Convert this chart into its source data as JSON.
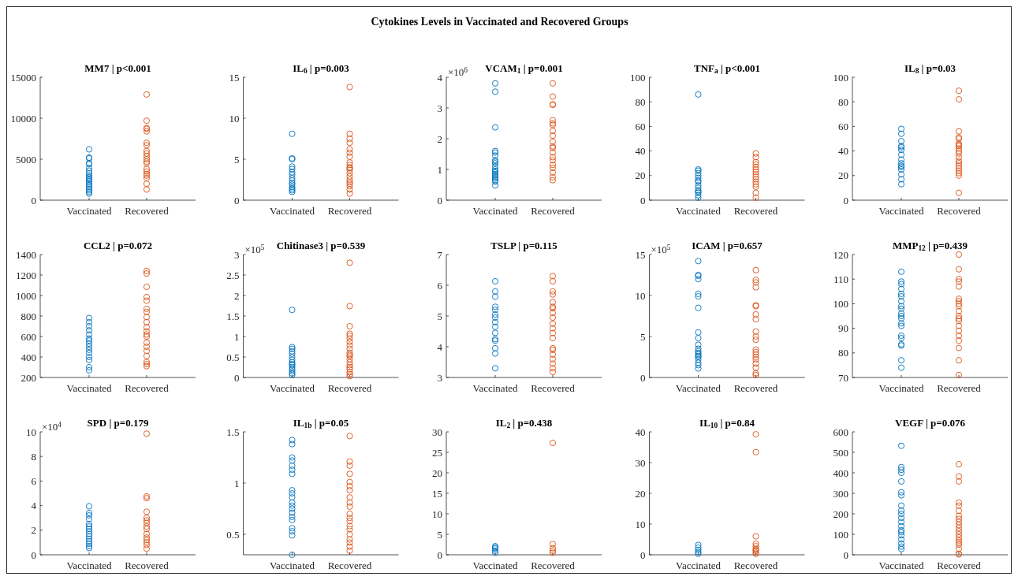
{
  "chart_data": [
    {
      "type": "other",
      "title": "Cytokines Levels in Vaccinated and Recovered Groups"
    },
    {
      "type": "scatter",
      "title": "MM7 | p<0.001",
      "categories": [
        "Vaccinated",
        "Recovered"
      ],
      "ylim": [
        0,
        15000
      ],
      "yticks": [
        0,
        5000,
        10000,
        15000
      ],
      "marker": "circle",
      "grid": false,
      "legend": false,
      "series": [
        {
          "color": "#0072bd",
          "x": [
            "Vaccinated",
            "Vaccinated",
            "Vaccinated",
            "Vaccinated",
            "Vaccinated",
            "Vaccinated",
            "Vaccinated",
            "Vaccinated",
            "Vaccinated",
            "Vaccinated",
            "Vaccinated",
            "Vaccinated",
            "Vaccinated",
            "Vaccinated",
            "Vaccinated",
            "Vaccinated",
            "Vaccinated",
            "Vaccinated",
            "Vaccinated",
            "Vaccinated"
          ],
          "values": [
            6200,
            5200,
            5100,
            4500,
            4400,
            3900,
            3600,
            3300,
            3000,
            2800,
            2500,
            2300,
            2000,
            1800,
            1600,
            1400,
            1200,
            1000,
            800,
            2600
          ]
        },
        {
          "color": "#d95319",
          "x": [
            "Recovered",
            "Recovered",
            "Recovered",
            "Recovered",
            "Recovered",
            "Recovered",
            "Recovered",
            "Recovered",
            "Recovered",
            "Recovered",
            "Recovered",
            "Recovered",
            "Recovered",
            "Recovered",
            "Recovered",
            "Recovered",
            "Recovered",
            "Recovered",
            "Recovered",
            "Recovered"
          ],
          "values": [
            12900,
            9700,
            8800,
            8700,
            8400,
            7000,
            6700,
            6000,
            5700,
            5400,
            5000,
            4700,
            4500,
            3800,
            3500,
            3200,
            3000,
            2700,
            2000,
            1300
          ]
        }
      ]
    },
    {
      "type": "scatter",
      "title": "IL$_{6}$ | p=0.003",
      "categories": [
        "Vaccinated",
        "Recovered"
      ],
      "ylim": [
        0,
        15
      ],
      "yticks": [
        0,
        5,
        10,
        15
      ],
      "marker": "circle",
      "grid": false,
      "legend": false,
      "series": [
        {
          "color": "#0072bd",
          "x": [
            "Vaccinated",
            "Vaccinated",
            "Vaccinated",
            "Vaccinated",
            "Vaccinated",
            "Vaccinated",
            "Vaccinated",
            "Vaccinated",
            "Vaccinated",
            "Vaccinated",
            "Vaccinated",
            "Vaccinated",
            "Vaccinated",
            "Vaccinated",
            "Vaccinated"
          ],
          "values": [
            8.1,
            5.1,
            5.0,
            4.1,
            3.8,
            3.4,
            3.1,
            2.7,
            2.4,
            2.1,
            1.9,
            1.6,
            1.4,
            1.2,
            1.0
          ]
        },
        {
          "color": "#d95319",
          "x": [
            "Recovered",
            "Recovered",
            "Recovered",
            "Recovered",
            "Recovered",
            "Recovered",
            "Recovered",
            "Recovered",
            "Recovered",
            "Recovered",
            "Recovered",
            "Recovered",
            "Recovered",
            "Recovered",
            "Recovered",
            "Recovered",
            "Recovered",
            "Recovered",
            "Recovered",
            "Recovered"
          ],
          "values": [
            13.8,
            8.1,
            7.5,
            7.0,
            6.2,
            5.8,
            5.3,
            4.6,
            4.3,
            4.0,
            3.7,
            3.3,
            2.9,
            2.5,
            2.2,
            2.0,
            1.7,
            1.3,
            0.8,
            3.9
          ]
        }
      ]
    },
    {
      "type": "scatter",
      "title": "VCAM$_{1}$ | p=0.001",
      "annotations": [
        "×10$^{6}$"
      ],
      "categories": [
        "Vaccinated",
        "Recovered"
      ],
      "ylim": [
        0,
        4
      ],
      "yticks": [
        0,
        1,
        2,
        3,
        4
      ],
      "marker": "circle",
      "grid": false,
      "legend": false,
      "series": [
        {
          "color": "#0072bd",
          "x": [
            "Vaccinated",
            "Vaccinated",
            "Vaccinated",
            "Vaccinated",
            "Vaccinated",
            "Vaccinated",
            "Vaccinated",
            "Vaccinated",
            "Vaccinated",
            "Vaccinated",
            "Vaccinated",
            "Vaccinated",
            "Vaccinated",
            "Vaccinated",
            "Vaccinated",
            "Vaccinated",
            "Vaccinated",
            "Vaccinated",
            "Vaccinated",
            "Vaccinated"
          ],
          "values": [
            3.8,
            3.53,
            2.37,
            1.6,
            1.55,
            1.45,
            1.3,
            1.2,
            1.1,
            1.0,
            0.95,
            0.9,
            0.85,
            0.8,
            0.75,
            0.7,
            0.65,
            0.6,
            0.48,
            1.25
          ]
        },
        {
          "color": "#d95319",
          "x": [
            "Recovered",
            "Recovered",
            "Recovered",
            "Recovered",
            "Recovered",
            "Recovered",
            "Recovered",
            "Recovered",
            "Recovered",
            "Recovered",
            "Recovered",
            "Recovered",
            "Recovered",
            "Recovered",
            "Recovered",
            "Recovered",
            "Recovered",
            "Recovered",
            "Recovered",
            "Recovered"
          ],
          "values": [
            3.8,
            3.37,
            3.12,
            3.1,
            2.6,
            2.5,
            2.45,
            2.25,
            2.1,
            1.9,
            1.75,
            1.7,
            1.55,
            1.4,
            1.3,
            1.15,
            1.05,
            0.9,
            0.75,
            0.65
          ]
        }
      ]
    },
    {
      "type": "scatter",
      "title": "TNF$_{a}$ | p<0.001",
      "categories": [
        "Vaccinated",
        "Recovered"
      ],
      "ylim": [
        0,
        100
      ],
      "yticks": [
        0,
        20,
        40,
        60,
        80,
        100
      ],
      "marker": "circle",
      "grid": false,
      "legend": false,
      "series": [
        {
          "color": "#0072bd",
          "x": [
            "Vaccinated",
            "Vaccinated",
            "Vaccinated",
            "Vaccinated",
            "Vaccinated",
            "Vaccinated",
            "Vaccinated",
            "Vaccinated",
            "Vaccinated",
            "Vaccinated",
            "Vaccinated",
            "Vaccinated",
            "Vaccinated",
            "Vaccinated",
            "Vaccinated"
          ],
          "values": [
            86,
            25,
            24,
            22,
            20,
            18,
            16,
            15,
            12,
            10,
            8,
            7,
            6,
            4,
            2
          ]
        },
        {
          "color": "#d95319",
          "x": [
            "Recovered",
            "Recovered",
            "Recovered",
            "Recovered",
            "Recovered",
            "Recovered",
            "Recovered",
            "Recovered",
            "Recovered",
            "Recovered",
            "Recovered",
            "Recovered",
            "Recovered",
            "Recovered",
            "Recovered"
          ],
          "values": [
            38,
            35,
            31,
            29,
            27,
            25,
            23,
            21,
            19,
            17,
            15,
            13,
            11,
            6,
            2
          ]
        }
      ]
    },
    {
      "type": "scatter",
      "title": "IL$_{8}$ | p=0.03",
      "categories": [
        "Vaccinated",
        "Recovered"
      ],
      "ylim": [
        0,
        100
      ],
      "yticks": [
        0,
        20,
        40,
        60,
        80,
        100
      ],
      "marker": "circle",
      "grid": false,
      "legend": false,
      "series": [
        {
          "color": "#0072bd",
          "x": [
            "Vaccinated",
            "Vaccinated",
            "Vaccinated",
            "Vaccinated",
            "Vaccinated",
            "Vaccinated",
            "Vaccinated",
            "Vaccinated",
            "Vaccinated",
            "Vaccinated",
            "Vaccinated",
            "Vaccinated",
            "Vaccinated",
            "Vaccinated",
            "Vaccinated"
          ],
          "values": [
            58,
            54,
            48,
            44,
            43,
            41,
            37,
            33,
            30,
            28,
            27,
            25,
            21,
            17,
            13
          ]
        },
        {
          "color": "#d95319",
          "x": [
            "Recovered",
            "Recovered",
            "Recovered",
            "Recovered",
            "Recovered",
            "Recovered",
            "Recovered",
            "Recovered",
            "Recovered",
            "Recovered",
            "Recovered",
            "Recovered",
            "Recovered",
            "Recovered",
            "Recovered",
            "Recovered",
            "Recovered",
            "Recovered",
            "Recovered",
            "Recovered"
          ],
          "values": [
            89,
            82,
            56,
            51,
            50,
            46,
            44,
            42,
            40,
            38,
            35,
            32,
            30,
            28,
            26,
            24,
            22,
            20,
            6,
            45
          ]
        }
      ]
    },
    {
      "type": "scatter",
      "title": "CCL2 | p=0.072",
      "categories": [
        "Vaccinated",
        "Recovered"
      ],
      "ylim": [
        200,
        1400
      ],
      "yticks": [
        200,
        400,
        600,
        800,
        1000,
        1200,
        1400
      ],
      "marker": "circle",
      "grid": false,
      "legend": false,
      "series": [
        {
          "color": "#0072bd",
          "x": [
            "Vaccinated",
            "Vaccinated",
            "Vaccinated",
            "Vaccinated",
            "Vaccinated",
            "Vaccinated",
            "Vaccinated",
            "Vaccinated",
            "Vaccinated",
            "Vaccinated",
            "Vaccinated",
            "Vaccinated",
            "Vaccinated",
            "Vaccinated",
            "Vaccinated"
          ],
          "values": [
            780,
            740,
            700,
            660,
            620,
            580,
            560,
            530,
            500,
            470,
            440,
            400,
            370,
            300,
            270
          ]
        },
        {
          "color": "#d95319",
          "x": [
            "Recovered",
            "Recovered",
            "Recovered",
            "Recovered",
            "Recovered",
            "Recovered",
            "Recovered",
            "Recovered",
            "Recovered",
            "Recovered",
            "Recovered",
            "Recovered",
            "Recovered",
            "Recovered",
            "Recovered",
            "Recovered",
            "Recovered",
            "Recovered",
            "Recovered",
            "Recovered"
          ],
          "values": [
            1240,
            1215,
            1085,
            985,
            950,
            870,
            840,
            790,
            740,
            690,
            650,
            620,
            600,
            540,
            500,
            460,
            410,
            350,
            330,
            310
          ]
        }
      ]
    },
    {
      "type": "scatter",
      "title": "Chitinase3 | p=0.539",
      "annotations": [
        "×10$^{5}$"
      ],
      "categories": [
        "Vaccinated",
        "Recovered"
      ],
      "ylim": [
        0,
        3
      ],
      "yticks": [
        0,
        0.5,
        1,
        1.5,
        2,
        2.5,
        3
      ],
      "marker": "circle",
      "grid": false,
      "legend": false,
      "series": [
        {
          "color": "#0072bd",
          "x": [
            "Vaccinated",
            "Vaccinated",
            "Vaccinated",
            "Vaccinated",
            "Vaccinated",
            "Vaccinated",
            "Vaccinated",
            "Vaccinated",
            "Vaccinated",
            "Vaccinated",
            "Vaccinated",
            "Vaccinated",
            "Vaccinated",
            "Vaccinated",
            "Vaccinated"
          ],
          "values": [
            1.65,
            0.74,
            0.7,
            0.64,
            0.58,
            0.5,
            0.43,
            0.37,
            0.33,
            0.3,
            0.25,
            0.2,
            0.15,
            0.1,
            0.06
          ]
        },
        {
          "color": "#d95319",
          "x": [
            "Recovered",
            "Recovered",
            "Recovered",
            "Recovered",
            "Recovered",
            "Recovered",
            "Recovered",
            "Recovered",
            "Recovered",
            "Recovered",
            "Recovered",
            "Recovered",
            "Recovered",
            "Recovered",
            "Recovered",
            "Recovered",
            "Recovered",
            "Recovered",
            "Recovered",
            "Recovered"
          ],
          "values": [
            2.8,
            1.74,
            1.25,
            1.07,
            1.02,
            0.95,
            0.87,
            0.78,
            0.7,
            0.6,
            0.52,
            0.45,
            0.37,
            0.3,
            0.25,
            0.2,
            0.13,
            0.08,
            0.03,
            0.55
          ]
        }
      ]
    },
    {
      "type": "scatter",
      "title": "TSLP | p=0.115",
      "categories": [
        "Vaccinated",
        "Recovered"
      ],
      "ylim": [
        3,
        7
      ],
      "yticks": [
        3,
        4,
        5,
        6,
        7
      ],
      "marker": "circle",
      "grid": false,
      "legend": false,
      "series": [
        {
          "color": "#0072bd",
          "x": [
            "Vaccinated",
            "Vaccinated",
            "Vaccinated",
            "Vaccinated",
            "Vaccinated",
            "Vaccinated",
            "Vaccinated",
            "Vaccinated",
            "Vaccinated",
            "Vaccinated",
            "Vaccinated",
            "Vaccinated",
            "Vaccinated",
            "Vaccinated",
            "Vaccinated"
          ],
          "values": [
            6.13,
            5.8,
            5.63,
            5.3,
            5.2,
            5.05,
            4.95,
            4.8,
            4.65,
            4.45,
            4.25,
            4.2,
            3.95,
            3.78,
            3.3
          ]
        },
        {
          "color": "#d95319",
          "x": [
            "Recovered",
            "Recovered",
            "Recovered",
            "Recovered",
            "Recovered",
            "Recovered",
            "Recovered",
            "Recovered",
            "Recovered",
            "Recovered",
            "Recovered",
            "Recovered",
            "Recovered",
            "Recovered",
            "Recovered",
            "Recovered",
            "Recovered",
            "Recovered",
            "Recovered",
            "Recovered"
          ],
          "values": [
            6.3,
            6.13,
            5.8,
            5.7,
            5.45,
            5.3,
            5.1,
            4.95,
            4.75,
            4.6,
            4.45,
            4.28,
            3.95,
            3.9,
            3.75,
            3.6,
            3.45,
            3.3,
            3.18,
            5.25
          ]
        }
      ]
    },
    {
      "type": "scatter",
      "title": "ICAM | p=0.657",
      "annotations": [
        "×10$^{5}$"
      ],
      "categories": [
        "Vaccinated",
        "Recovered"
      ],
      "ylim": [
        0,
        15
      ],
      "yticks": [
        0,
        5,
        10,
        15
      ],
      "marker": "circle",
      "grid": false,
      "legend": false,
      "series": [
        {
          "color": "#0072bd",
          "x": [
            "Vaccinated",
            "Vaccinated",
            "Vaccinated",
            "Vaccinated",
            "Vaccinated",
            "Vaccinated",
            "Vaccinated",
            "Vaccinated",
            "Vaccinated",
            "Vaccinated",
            "Vaccinated",
            "Vaccinated",
            "Vaccinated",
            "Vaccinated",
            "Vaccinated",
            "Vaccinated",
            "Vaccinated",
            "Vaccinated",
            "Vaccinated",
            "Vaccinated"
          ],
          "values": [
            14.2,
            12.5,
            12.4,
            12.0,
            10.2,
            9.9,
            8.5,
            5.5,
            4.8,
            4.0,
            3.5,
            3.2,
            2.8,
            2.5,
            2.2,
            1.8,
            1.5,
            1.1,
            3.0,
            2.6
          ]
        },
        {
          "color": "#d95319",
          "x": [
            "Recovered",
            "Recovered",
            "Recovered",
            "Recovered",
            "Recovered",
            "Recovered",
            "Recovered",
            "Recovered",
            "Recovered",
            "Recovered",
            "Recovered",
            "Recovered",
            "Recovered",
            "Recovered",
            "Recovered",
            "Recovered",
            "Recovered",
            "Recovered",
            "Recovered",
            "Recovered"
          ],
          "values": [
            13.1,
            11.9,
            11.6,
            11.0,
            8.8,
            8.7,
            7.7,
            7.1,
            5.6,
            5.0,
            4.6,
            3.4,
            3.1,
            2.8,
            2.5,
            2.2,
            1.7,
            1.2,
            0.5,
            0.3
          ]
        }
      ]
    },
    {
      "type": "scatter",
      "title": "MMP$_{12}$ | p=0.439",
      "categories": [
        "Vaccinated",
        "Recovered"
      ],
      "ylim": [
        70,
        120
      ],
      "yticks": [
        70,
        80,
        90,
        100,
        110,
        120
      ],
      "marker": "circle",
      "grid": false,
      "legend": false,
      "series": [
        {
          "color": "#0072bd",
          "x": [
            "Vaccinated",
            "Vaccinated",
            "Vaccinated",
            "Vaccinated",
            "Vaccinated",
            "Vaccinated",
            "Vaccinated",
            "Vaccinated",
            "Vaccinated",
            "Vaccinated",
            "Vaccinated",
            "Vaccinated",
            "Vaccinated",
            "Vaccinated",
            "Vaccinated",
            "Vaccinated",
            "Vaccinated",
            "Vaccinated",
            "Vaccinated",
            "Vaccinated"
          ],
          "values": [
            113,
            109,
            108,
            106,
            104,
            103,
            101,
            99,
            98,
            96,
            95,
            94,
            92,
            91,
            87,
            86,
            83.5,
            83,
            77,
            74
          ]
        },
        {
          "color": "#d95319",
          "x": [
            "Recovered",
            "Recovered",
            "Recovered",
            "Recovered",
            "Recovered",
            "Recovered",
            "Recovered",
            "Recovered",
            "Recovered",
            "Recovered",
            "Recovered",
            "Recovered",
            "Recovered",
            "Recovered",
            "Recovered",
            "Recovered",
            "Recovered",
            "Recovered",
            "Recovered",
            "Recovered"
          ],
          "values": [
            120,
            114,
            110,
            109,
            107,
            102,
            101,
            100,
            99,
            97,
            95,
            94,
            93,
            91,
            89,
            87,
            85,
            82,
            77,
            71
          ]
        }
      ]
    },
    {
      "type": "scatter",
      "title": "SPD | p=0.179",
      "annotations": [
        "×10$^{4}$"
      ],
      "categories": [
        "Vaccinated",
        "Recovered"
      ],
      "ylim": [
        0,
        10
      ],
      "yticks": [
        0,
        2,
        4,
        6,
        8,
        10
      ],
      "marker": "circle",
      "grid": false,
      "legend": false,
      "series": [
        {
          "color": "#0072bd",
          "x": [
            "Vaccinated",
            "Vaccinated",
            "Vaccinated",
            "Vaccinated",
            "Vaccinated",
            "Vaccinated",
            "Vaccinated",
            "Vaccinated",
            "Vaccinated",
            "Vaccinated",
            "Vaccinated",
            "Vaccinated",
            "Vaccinated",
            "Vaccinated",
            "Vaccinated"
          ],
          "values": [
            3.95,
            3.4,
            3.2,
            2.9,
            2.5,
            2.3,
            2.1,
            1.9,
            1.7,
            1.5,
            1.3,
            1.1,
            0.9,
            0.7,
            0.55
          ]
        },
        {
          "color": "#d95319",
          "x": [
            "Recovered",
            "Recovered",
            "Recovered",
            "Recovered",
            "Recovered",
            "Recovered",
            "Recovered",
            "Recovered",
            "Recovered",
            "Recovered",
            "Recovered",
            "Recovered",
            "Recovered",
            "Recovered",
            "Recovered"
          ],
          "values": [
            9.85,
            4.75,
            4.6,
            3.5,
            3.0,
            2.8,
            2.6,
            2.3,
            2.1,
            1.7,
            1.4,
            1.2,
            1.0,
            0.8,
            0.5
          ]
        }
      ]
    },
    {
      "type": "scatter",
      "title": "IL$_{1b}$ | p=0.05",
      "categories": [
        "Vaccinated",
        "Recovered"
      ],
      "ylim": [
        0.3,
        1.5
      ],
      "yticks": [
        0.5,
        1,
        1.5
      ],
      "marker": "circle",
      "grid": false,
      "legend": false,
      "series": [
        {
          "color": "#0072bd",
          "x": [
            "Vaccinated",
            "Vaccinated",
            "Vaccinated",
            "Vaccinated",
            "Vaccinated",
            "Vaccinated",
            "Vaccinated",
            "Vaccinated",
            "Vaccinated",
            "Vaccinated",
            "Vaccinated",
            "Vaccinated",
            "Vaccinated",
            "Vaccinated",
            "Vaccinated",
            "Vaccinated",
            "Vaccinated",
            "Vaccinated",
            "Vaccinated",
            "Vaccinated"
          ],
          "values": [
            1.42,
            1.38,
            1.25,
            1.22,
            1.17,
            1.13,
            1.09,
            0.93,
            0.9,
            0.86,
            0.81,
            0.78,
            0.75,
            0.71,
            0.67,
            0.64,
            0.56,
            0.53,
            0.49,
            0.3
          ]
        },
        {
          "color": "#d95319",
          "x": [
            "Recovered",
            "Recovered",
            "Recovered",
            "Recovered",
            "Recovered",
            "Recovered",
            "Recovered",
            "Recovered",
            "Recovered",
            "Recovered",
            "Recovered",
            "Recovered",
            "Recovered",
            "Recovered",
            "Recovered",
            "Recovered",
            "Recovered",
            "Recovered",
            "Recovered",
            "Recovered"
          ],
          "values": [
            1.46,
            1.21,
            1.17,
            1.09,
            1.01,
            0.97,
            0.93,
            0.86,
            0.81,
            0.77,
            0.7,
            0.66,
            0.63,
            0.58,
            0.55,
            0.5,
            0.45,
            0.42,
            0.38,
            0.34
          ]
        }
      ]
    },
    {
      "type": "scatter",
      "title": "IL$_{2}$ | p=0.438",
      "categories": [
        "Vaccinated",
        "Recovered"
      ],
      "ylim": [
        0,
        30
      ],
      "yticks": [
        0,
        5,
        10,
        15,
        20,
        25,
        30
      ],
      "marker": "circle",
      "grid": false,
      "legend": false,
      "series": [
        {
          "color": "#0072bd",
          "x": [
            "Vaccinated",
            "Vaccinated",
            "Vaccinated",
            "Vaccinated",
            "Vaccinated"
          ],
          "values": [
            2.1,
            1.8,
            1.5,
            1.0,
            0.5
          ]
        },
        {
          "color": "#d95319",
          "x": [
            "Recovered",
            "Recovered",
            "Recovered",
            "Recovered",
            "Recovered"
          ],
          "values": [
            27.3,
            2.6,
            1.6,
            1.0,
            0.5
          ]
        }
      ]
    },
    {
      "type": "scatter",
      "title": "IL$_{10}$ | p=0.84",
      "categories": [
        "Vaccinated",
        "Recovered"
      ],
      "ylim": [
        0,
        40
      ],
      "yticks": [
        0,
        10,
        20,
        30,
        40
      ],
      "marker": "circle",
      "grid": false,
      "legend": false,
      "series": [
        {
          "color": "#0072bd",
          "x": [
            "Vaccinated",
            "Vaccinated",
            "Vaccinated",
            "Vaccinated",
            "Vaccinated"
          ],
          "values": [
            3.2,
            2.3,
            1.6,
            0.9,
            0.3
          ]
        },
        {
          "color": "#d95319",
          "x": [
            "Recovered",
            "Recovered",
            "Recovered",
            "Recovered",
            "Recovered",
            "Recovered",
            "Recovered",
            "Recovered",
            "Recovered",
            "Recovered"
          ],
          "values": [
            39.2,
            33.4,
            6.0,
            3.6,
            2.8,
            2.0,
            1.3,
            0.7,
            0.3,
            1.6
          ]
        }
      ]
    },
    {
      "type": "scatter",
      "title": "VEGF | p=0.076",
      "categories": [
        "Vaccinated",
        "Recovered"
      ],
      "ylim": [
        0,
        600
      ],
      "yticks": [
        0,
        100,
        200,
        300,
        400,
        500,
        600
      ],
      "marker": "circle",
      "grid": false,
      "legend": false,
      "series": [
        {
          "color": "#0072bd",
          "x": [
            "Vaccinated",
            "Vaccinated",
            "Vaccinated",
            "Vaccinated",
            "Vaccinated",
            "Vaccinated",
            "Vaccinated",
            "Vaccinated",
            "Vaccinated",
            "Vaccinated",
            "Vaccinated",
            "Vaccinated",
            "Vaccinated",
            "Vaccinated",
            "Vaccinated",
            "Vaccinated",
            "Vaccinated",
            "Vaccinated",
            "Vaccinated",
            "Vaccinated"
          ],
          "values": [
            532,
            428,
            415,
            400,
            358,
            305,
            290,
            240,
            215,
            200,
            180,
            160,
            140,
            120,
            95,
            75,
            55,
            40,
            28,
            110
          ]
        },
        {
          "color": "#d95319",
          "x": [
            "Recovered",
            "Recovered",
            "Recovered",
            "Recovered",
            "Recovered",
            "Recovered",
            "Recovered",
            "Recovered",
            "Recovered",
            "Recovered",
            "Recovered",
            "Recovered",
            "Recovered",
            "Recovered",
            "Recovered",
            "Recovered",
            "Recovered",
            "Recovered",
            "Recovered",
            "Recovered"
          ],
          "values": [
            442,
            382,
            358,
            255,
            240,
            215,
            190,
            175,
            145,
            130,
            115,
            100,
            85,
            70,
            50,
            30,
            5,
            2,
            160,
            60
          ]
        }
      ]
    }
  ]
}
